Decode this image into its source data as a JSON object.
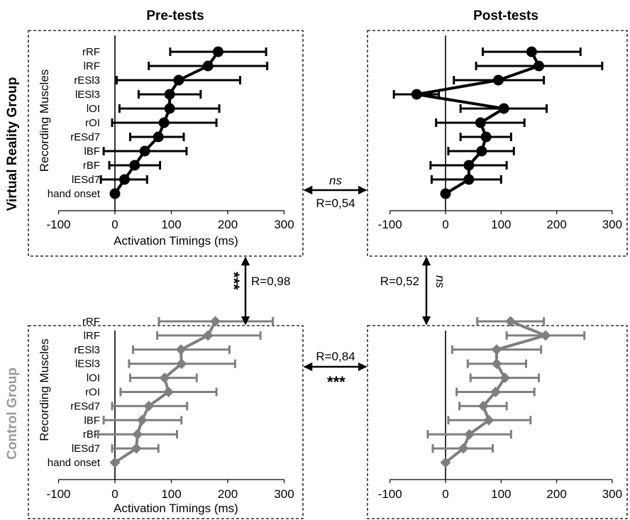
{
  "column_titles": [
    "Pre-tests",
    "Post-tests"
  ],
  "row_titles": [
    "Virtual Reality Group",
    "Control Group"
  ],
  "y_axis_title": "Recording Muscles",
  "x_axis_title": "Activation Timings (ms)",
  "x_ticks": [
    "-100",
    "0",
    "100",
    "200",
    "300"
  ],
  "colors": {
    "vr": "#000000",
    "control": "#7f7f7f",
    "control_title": "#9a9a9a"
  },
  "comparisons": {
    "vr_pre_post": {
      "stat": "ns",
      "r": "R=0,54"
    },
    "control_pre_post": {
      "stat": "***",
      "r": "R=0,84"
    },
    "pre_vr_control": {
      "stat": "***",
      "r": "R=0,98"
    },
    "post_vr_control": {
      "stat": "ns",
      "r": "R=0,52"
    }
  },
  "chart_data": [
    {
      "type": "line",
      "panel": "Virtual Reality Group - Pre-tests",
      "categories": [
        "rRF",
        "lRF",
        "rESl3",
        "lESl3",
        "lOI",
        "rOI",
        "rESd7",
        "lBF",
        "rBF",
        "lESd7",
        "hand onset"
      ],
      "values": [
        183,
        165,
        113,
        97,
        97,
        87,
        77,
        53,
        35,
        17,
        0
      ],
      "error_low": [
        98,
        60,
        3,
        42,
        8,
        -5,
        27,
        -20,
        -10,
        -25,
        0
      ],
      "error_high": [
        268,
        270,
        222,
        152,
        185,
        180,
        122,
        127,
        80,
        57,
        0
      ],
      "xlim": [
        -100,
        300
      ]
    },
    {
      "type": "line",
      "panel": "Virtual Reality Group - Post-tests",
      "categories": [
        "rRF",
        "lRF",
        "rESl3",
        "lESl3",
        "lOI",
        "rOI",
        "rESd7",
        "lBF",
        "rBF",
        "lESd7",
        "hand onset"
      ],
      "values": [
        155,
        168,
        95,
        -52,
        105,
        63,
        73,
        65,
        42,
        42,
        0
      ],
      "error_low": [
        67,
        55,
        15,
        -93,
        27,
        -17,
        27,
        5,
        -27,
        -25,
        0
      ],
      "error_high": [
        243,
        282,
        177,
        -12,
        182,
        142,
        118,
        123,
        110,
        100,
        0
      ],
      "xlim": [
        -100,
        300
      ]
    },
    {
      "type": "line",
      "panel": "Control Group - Pre-tests",
      "categories": [
        "rRF",
        "lRF",
        "rESl3",
        "lESl3",
        "lOI",
        "rOI",
        "rESd7",
        "lBF",
        "rBF",
        "lESd7",
        "hand onset"
      ],
      "values": [
        178,
        165,
        117,
        118,
        88,
        95,
        60,
        48,
        40,
        38,
        0
      ],
      "error_low": [
        78,
        75,
        32,
        25,
        27,
        10,
        -5,
        -20,
        -30,
        -5,
        0
      ],
      "error_high": [
        280,
        258,
        203,
        213,
        145,
        180,
        128,
        118,
        110,
        77,
        0
      ],
      "xlim": [
        -100,
        300
      ]
    },
    {
      "type": "line",
      "panel": "Control Group - Post-tests",
      "categories": [
        "rRF",
        "lRF",
        "rESl3",
        "lESl3",
        "lOI",
        "rOI",
        "rESd7",
        "lBF",
        "rBF",
        "lESd7",
        "hand onset"
      ],
      "values": [
        117,
        180,
        92,
        92,
        107,
        90,
        68,
        78,
        43,
        32,
        0
      ],
      "error_low": [
        57,
        110,
        12,
        40,
        45,
        20,
        25,
        5,
        -32,
        -23,
        0
      ],
      "error_high": [
        177,
        250,
        172,
        145,
        168,
        160,
        110,
        153,
        118,
        85,
        0
      ],
      "xlim": [
        -100,
        300
      ]
    }
  ]
}
